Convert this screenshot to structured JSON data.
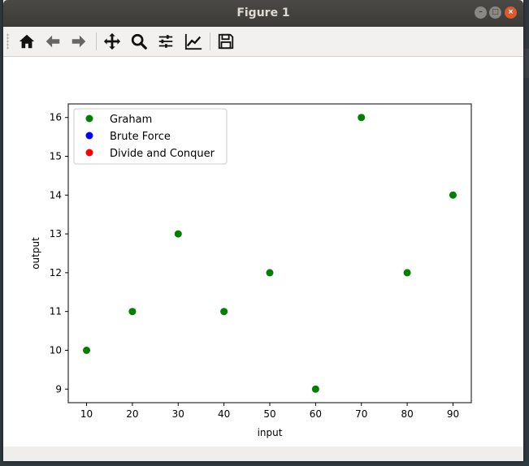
{
  "window": {
    "title": "Figure 1"
  },
  "toolbar": {
    "buttons": [
      {
        "name": "home-icon"
      },
      {
        "name": "back-arrow-icon"
      },
      {
        "name": "forward-arrow-icon"
      },
      {
        "name": "pan-icon"
      },
      {
        "name": "zoom-icon"
      },
      {
        "name": "configure-subplots-icon"
      },
      {
        "name": "edit-axis-icon"
      },
      {
        "name": "save-icon"
      }
    ]
  },
  "chart_data": {
    "type": "scatter",
    "xlabel": "input",
    "ylabel": "output",
    "xlim": [
      6,
      94
    ],
    "ylim": [
      8.65,
      16.35
    ],
    "xticks": [
      10,
      20,
      30,
      40,
      50,
      60,
      70,
      80,
      90
    ],
    "yticks": [
      9,
      10,
      11,
      12,
      13,
      14,
      15,
      16
    ],
    "legend_position": "top-left",
    "series": [
      {
        "name": "Graham",
        "color": "#008000",
        "x": [
          10,
          20,
          30,
          40,
          50,
          60,
          70,
          80,
          90
        ],
        "y": [
          10,
          11,
          13,
          11,
          12,
          9,
          16,
          12,
          14
        ]
      },
      {
        "name": "Brute Force",
        "color": "#0000ff",
        "x": [],
        "y": []
      },
      {
        "name": "Divide and Conquer",
        "color": "#ff0000",
        "x": [],
        "y": []
      }
    ]
  }
}
